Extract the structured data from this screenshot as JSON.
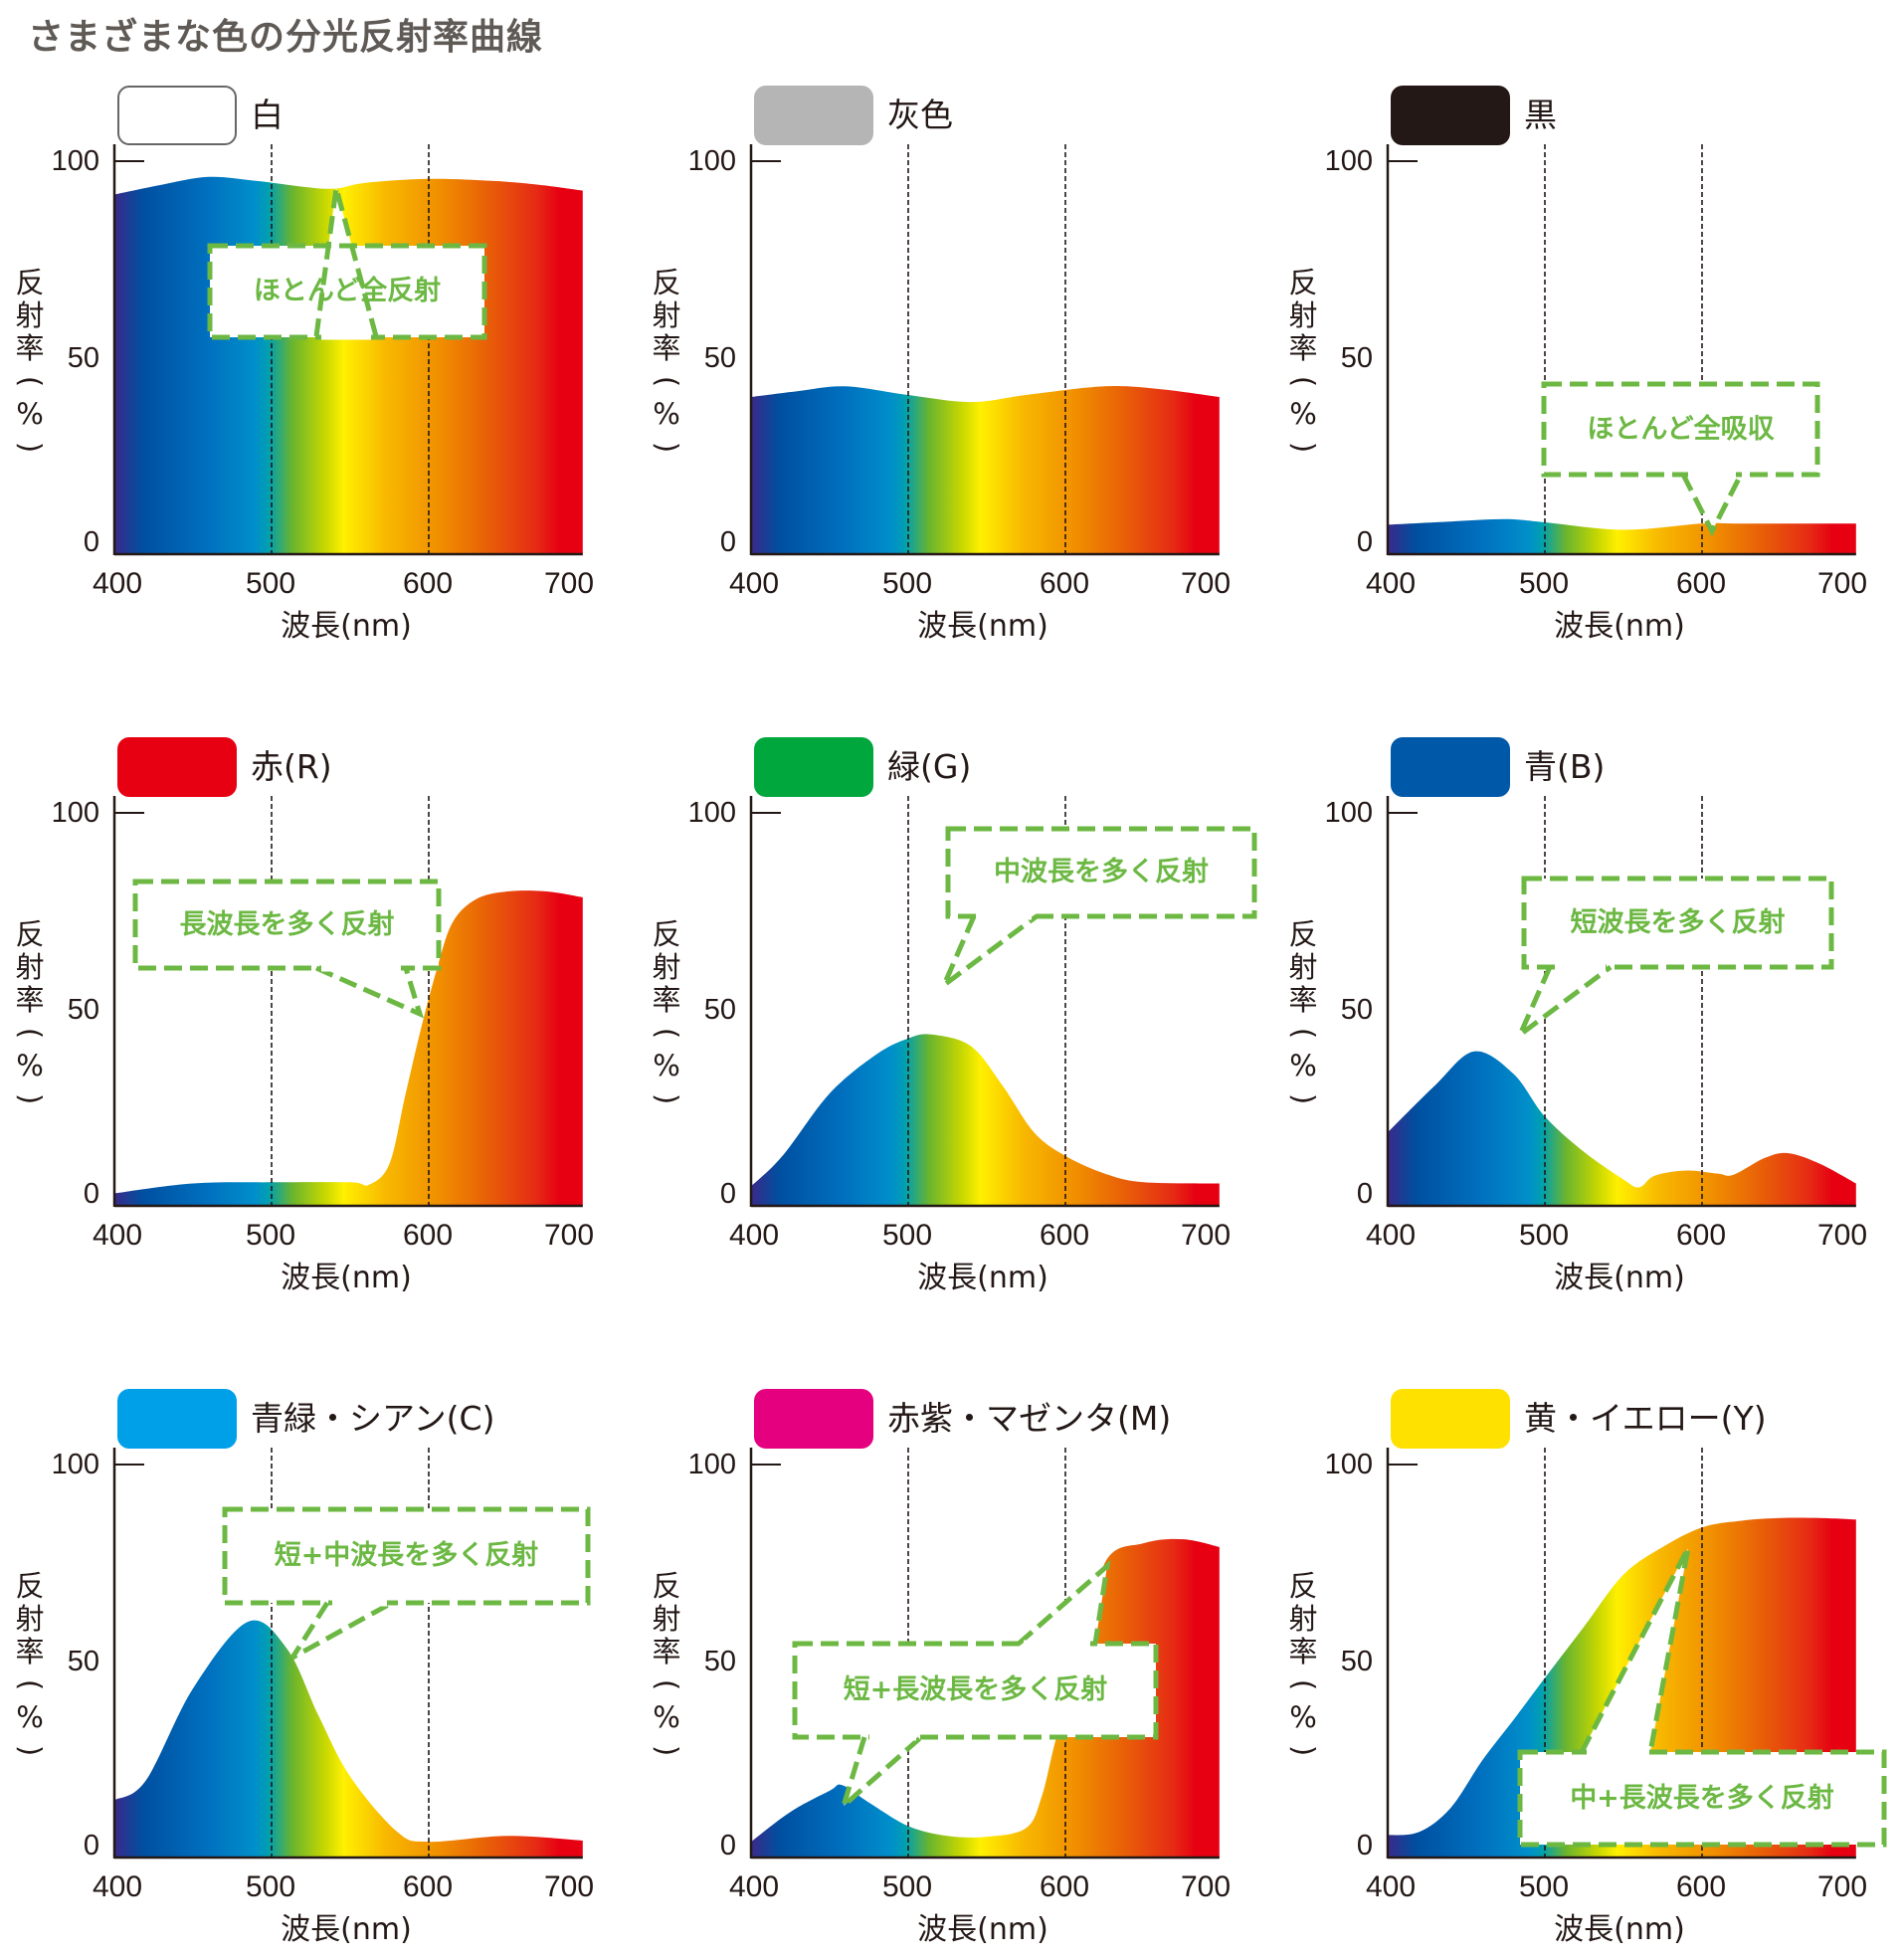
{
  "title": "さまざまな色の分光反射率曲線",
  "axis": {
    "ylabel_chars": [
      "反",
      "射",
      "率",
      "(",
      "%",
      ")"
    ],
    "ylabel": "反射率(%)",
    "xlabel": "波長(nm)",
    "yticks": [
      "100",
      "50",
      "0"
    ],
    "xticks": [
      "400",
      "500",
      "600",
      "700"
    ]
  },
  "colors": {
    "callout": "#6cb843",
    "spectrum": [
      "#3a2a8a",
      "#004fa0",
      "#0070bf",
      "#008fca",
      "#00a0b0",
      "#6ab42e",
      "#c8d800",
      "#fff000",
      "#f8b800",
      "#f08c00",
      "#e85e08",
      "#e62b14",
      "#e60012"
    ]
  },
  "panels": [
    {
      "label": "白",
      "swatch": "#ffffff",
      "outlined": true,
      "callout": {
        "text": "ほとんど全反射"
      }
    },
    {
      "label": "灰色",
      "swatch": "#b5b5b6",
      "outlined": false,
      "callout": null
    },
    {
      "label": "黒",
      "swatch": "#231815",
      "outlined": false,
      "callout": {
        "text": "ほとんど全吸収"
      }
    },
    {
      "label": "赤(R)",
      "swatch": "#e60012",
      "outlined": false,
      "callout": {
        "text": "長波長を多く反射"
      }
    },
    {
      "label": "緑(G)",
      "swatch": "#00a73c",
      "outlined": false,
      "callout": {
        "text": "中波長を多く反射"
      }
    },
    {
      "label": "青(B)",
      "swatch": "#0058a8",
      "outlined": false,
      "callout": {
        "text": "短波長を多く反射"
      }
    },
    {
      "label": "青緑・シアン(C)",
      "swatch": "#00a0e9",
      "outlined": false,
      "callout": {
        "text": "短+中波長を多く反射"
      }
    },
    {
      "label": "赤紫・マゼンタ(M)",
      "swatch": "#e4007f",
      "outlined": false,
      "callout": {
        "text": "短+長波長を多く反射"
      }
    },
    {
      "label": "黄・イエロー(Y)",
      "swatch": "#ffe100",
      "outlined": false,
      "callout": {
        "text": "中+長波長を多く反射"
      }
    }
  ],
  "chart_data": [
    {
      "type": "area",
      "title": "白",
      "xlabel": "波長(nm)",
      "ylabel": "反射率(%)",
      "xlim": [
        400,
        700
      ],
      "ylim": [
        0,
        100
      ],
      "grid": "dashed verticals at 500, 600",
      "x": [
        400,
        430,
        460,
        490,
        520,
        540,
        560,
        600,
        640,
        670,
        698
      ],
      "y": [
        91.5,
        94,
        96,
        95,
        93.5,
        93,
        94.5,
        95.5,
        95,
        94,
        92.5
      ],
      "annotation": "ほとんど全反射"
    },
    {
      "type": "area",
      "title": "灰色",
      "xlabel": "波長(nm)",
      "ylabel": "反射率(%)",
      "xlim": [
        400,
        700
      ],
      "ylim": [
        0,
        100
      ],
      "grid": "dashed verticals at 500, 600",
      "x": [
        400,
        430,
        460,
        500,
        540,
        575,
        625,
        660,
        698
      ],
      "y": [
        40,
        41.5,
        42.7,
        40.5,
        38.7,
        40.5,
        42.7,
        42,
        40
      ],
      "annotation": null
    },
    {
      "type": "area",
      "title": "黒",
      "xlabel": "波長(nm)",
      "ylabel": "反射率(%)",
      "xlim": [
        400,
        700
      ],
      "ylim": [
        0,
        100
      ],
      "grid": "dashed verticals at 500, 600",
      "x": [
        400,
        440,
        475,
        500,
        550,
        600,
        625,
        698
      ],
      "y": [
        7.5,
        8.3,
        8.9,
        8.1,
        6.2,
        7.8,
        7.8,
        7.8
      ],
      "annotation": "ほとんど全吸収"
    },
    {
      "type": "area",
      "title": "赤(R)",
      "xlabel": "波長(nm)",
      "ylabel": "反射率(%)",
      "xlim": [
        400,
        700
      ],
      "ylim": [
        0,
        100
      ],
      "grid": "dashed verticals at 500, 600",
      "x": [
        400,
        450,
        500,
        550,
        562,
        575,
        585,
        595,
        605,
        615,
        630,
        650,
        675,
        698
      ],
      "y": [
        3.2,
        5.7,
        6,
        6,
        5.4,
        10.7,
        28,
        45,
        60,
        72,
        78,
        80,
        80,
        78.5
      ],
      "annotation": "長波長を多く反射"
    },
    {
      "type": "area",
      "title": "緑(G)",
      "xlabel": "波長(nm)",
      "ylabel": "反射率(%)",
      "xlim": [
        400,
        700
      ],
      "ylim": [
        0,
        100
      ],
      "grid": "dashed verticals at 500, 600",
      "x": [
        400,
        420,
        450,
        480,
        500,
        515,
        540,
        560,
        580,
        600,
        625,
        650,
        698
      ],
      "y": [
        5,
        12.7,
        28.6,
        38.6,
        42.6,
        43.6,
        40.6,
        30.6,
        18.7,
        12.7,
        8.2,
        6,
        5.7
      ],
      "annotation": "中波長を多く反射"
    },
    {
      "type": "area",
      "title": "青(B)",
      "xlabel": "波長(nm)",
      "ylabel": "反射率(%)",
      "xlim": [
        400,
        700
      ],
      "ylim": [
        0,
        100
      ],
      "grid": "dashed verticals at 500, 600",
      "x": [
        400,
        430,
        455,
        480,
        500,
        525,
        550,
        560,
        570,
        590,
        610,
        620,
        640,
        655,
        675,
        698
      ],
      "y": [
        18.7,
        30.6,
        39.3,
        33.6,
        22.7,
        13.7,
        6.7,
        4.7,
        7.7,
        9,
        8.2,
        7.9,
        12.2,
        13.4,
        10.7,
        5.7
      ],
      "annotation": "短波長を多く反射"
    },
    {
      "type": "area",
      "title": "青緑・シアン(C)",
      "xlabel": "波長(nm)",
      "ylabel": "反射率(%)",
      "xlim": [
        400,
        700
      ],
      "ylim": [
        0,
        100
      ],
      "grid": "dashed verticals at 500, 600",
      "x": [
        400,
        420,
        450,
        485,
        510,
        530,
        550,
        580,
        600,
        650,
        698
      ],
      "y": [
        14.6,
        19.6,
        43,
        60,
        53,
        36,
        20.6,
        6.5,
        4,
        5.5,
        4.3
      ],
      "annotation": "短+中波長を多く反射"
    },
    {
      "type": "area",
      "title": "赤紫・マゼンタ(M)",
      "xlabel": "波長(nm)",
      "ylabel": "反射率(%)",
      "xlim": [
        400,
        700
      ],
      "ylim": [
        0,
        100
      ],
      "grid": "dashed verticals at 500, 600",
      "x": [
        400,
        425,
        450,
        458,
        475,
        500,
        525,
        550,
        575,
        585,
        595,
        610,
        625,
        650,
        675,
        698
      ],
      "y": [
        4,
        11.6,
        17,
        18.4,
        14,
        8,
        5.5,
        5.3,
        7.5,
        15.6,
        31.6,
        48.7,
        74.9,
        80,
        81,
        79
      ],
      "annotation": "短+長波長を多く反射"
    },
    {
      "type": "area",
      "title": "黄・イエロー(Y)",
      "xlabel": "波長(nm)",
      "ylabel": "反射率(%)",
      "xlim": [
        400,
        700
      ],
      "ylim": [
        0,
        100
      ],
      "grid": "dashed verticals at 500, 600",
      "x": [
        400,
        420,
        440,
        460,
        480,
        500,
        525,
        550,
        575,
        600,
        625,
        650,
        675,
        698
      ],
      "y": [
        5.7,
        6.5,
        12.6,
        24.6,
        35,
        45.7,
        58.8,
        72,
        79,
        84,
        85.7,
        86.4,
        86.4,
        86
      ],
      "annotation": "中+長波長を多く反射"
    }
  ]
}
